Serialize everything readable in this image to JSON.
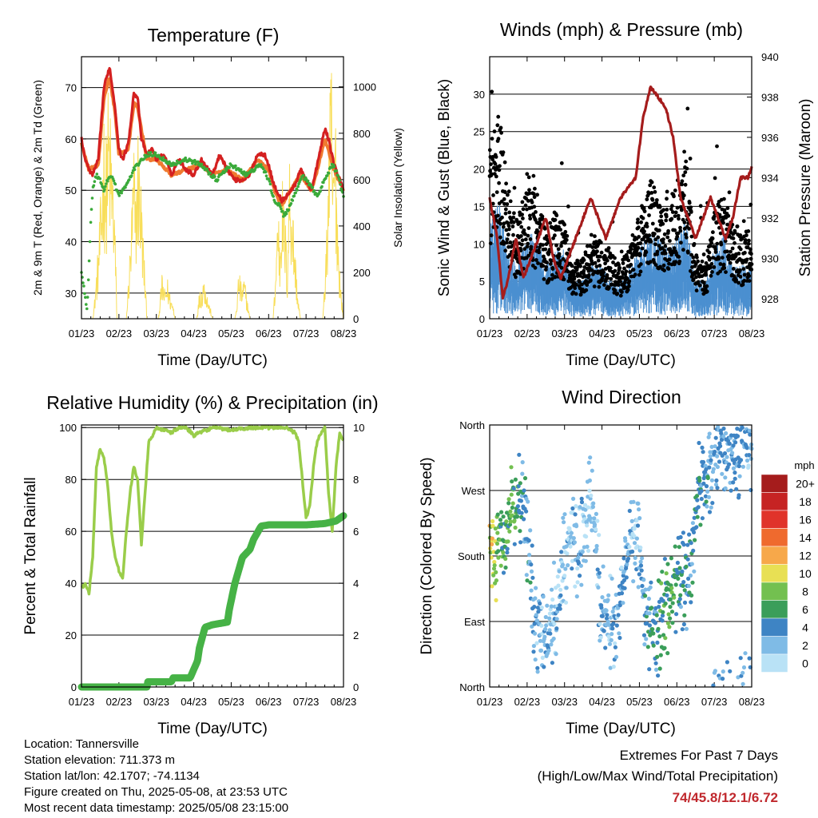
{
  "colors": {
    "temp_2m": "#d42020",
    "temp_9m": "#f07a30",
    "dewpoint": "#3aaa3a",
    "solar": "#f8de5a",
    "gust": "#000000",
    "wind": "#4b8fd0",
    "pressure": "#a51c1c",
    "rh": "#9acd4a",
    "precip": "#46b246",
    "extremes_text": "#c0282d"
  },
  "chart_data": [
    {
      "id": "temperature",
      "type": "line",
      "title": "Temperature (F)",
      "xlabel": "Time (Day/UTC)",
      "ylabel": "2m & 9m T (Red, Orange) & 2m Td (Green)",
      "y2label": "Solar Insolation (Yellow)",
      "x_ticks": [
        "01/23",
        "02/23",
        "03/23",
        "04/23",
        "05/23",
        "06/23",
        "07/23",
        "08/23"
      ],
      "y_ticks": [
        30,
        40,
        50,
        60,
        70
      ],
      "y2_ticks": [
        0,
        200,
        400,
        600,
        800,
        1000
      ],
      "ylim": [
        25,
        76
      ],
      "y2lim": [
        0,
        1130
      ],
      "grid": true,
      "series": [
        {
          "key": "t2m",
          "x": [
            0,
            0.1,
            0.2,
            0.3,
            0.45,
            0.6,
            0.75,
            0.9,
            1.0,
            1.1,
            1.25,
            1.4,
            1.5,
            1.6,
            1.75,
            1.9,
            2.0,
            2.2,
            2.4,
            2.6,
            2.8,
            3.0,
            3.2,
            3.3,
            3.5,
            3.7,
            3.9,
            4.1,
            4.3,
            4.5,
            4.7,
            4.9,
            5.0,
            5.1,
            5.2,
            5.35,
            5.5,
            5.7,
            5.85,
            6.0,
            6.15,
            6.3,
            6.5,
            6.6,
            6.75,
            6.9,
            7.0
          ],
          "y": [
            60,
            56,
            54,
            53,
            56,
            70,
            74,
            66,
            58,
            56,
            59,
            69,
            68,
            60,
            57,
            58,
            56,
            57,
            53,
            56,
            54,
            53,
            56,
            55,
            53,
            57,
            54,
            52,
            52,
            53,
            57,
            57,
            55,
            52,
            50,
            48,
            49,
            51,
            54,
            52,
            50,
            55,
            62,
            60,
            55,
            52,
            50
          ]
        },
        {
          "key": "t9m",
          "x": [
            0,
            0.2,
            0.45,
            0.6,
            0.75,
            0.9,
            1.0,
            1.25,
            1.4,
            1.5,
            1.75,
            2.0,
            2.4,
            2.8,
            3.2,
            3.5,
            3.9,
            4.3,
            4.7,
            5.0,
            5.2,
            5.35,
            5.5,
            5.85,
            6.15,
            6.3,
            6.5,
            6.75,
            7.0
          ],
          "y": [
            59,
            54,
            55,
            68,
            72,
            65,
            57,
            58,
            67,
            66,
            56,
            56,
            53,
            54,
            55,
            53,
            54,
            52,
            56,
            54,
            49,
            47,
            49,
            53,
            50,
            54,
            60,
            54,
            50
          ]
        },
        {
          "key": "td2m",
          "x": [
            0,
            0.05,
            0.1,
            0.15,
            0.2,
            0.25,
            0.3,
            0.35,
            0.4,
            0.5,
            0.6,
            0.7,
            0.8,
            0.9,
            1.0,
            1.2,
            1.4,
            1.6,
            1.8,
            2.0,
            2.4,
            2.8,
            3.2,
            3.6,
            4.0,
            4.4,
            4.8,
            5.0,
            5.15,
            5.3,
            5.4,
            5.5,
            5.7,
            5.9,
            6.1,
            6.3,
            6.5,
            6.7,
            6.85,
            7.0
          ],
          "y": [
            34,
            32,
            29,
            27,
            35,
            44,
            50,
            52,
            53,
            52,
            50,
            52,
            53,
            51,
            49,
            51,
            54,
            56,
            57,
            57,
            55,
            56,
            55,
            52,
            55,
            53,
            55,
            52,
            48,
            47,
            45,
            46,
            49,
            53,
            51,
            49,
            52,
            55,
            53,
            49
          ]
        },
        {
          "key": "solar",
          "x": [
            0,
            0.3,
            0.35,
            0.45,
            0.55,
            0.6,
            0.65,
            0.72,
            0.8,
            0.88,
            0.95,
            1.2,
            1.3,
            1.4,
            1.45,
            1.5,
            1.58,
            1.65,
            1.75,
            1.9,
            2.05,
            2.1,
            2.15,
            2.22,
            2.3,
            2.38,
            2.45,
            2.5,
            2.55,
            2.62,
            2.7,
            3.08,
            3.12,
            3.17,
            3.2,
            3.25,
            3.32,
            3.38,
            3.45,
            3.5,
            4.1,
            4.15,
            4.2,
            4.28,
            4.35,
            4.42,
            4.5,
            5.12,
            5.18,
            5.25,
            5.3,
            5.35,
            5.45,
            5.5,
            5.55,
            5.62,
            5.7,
            5.78,
            5.85,
            6.45,
            6.55,
            6.62,
            6.68,
            6.72,
            6.78,
            6.85,
            6.92,
            7.0
          ],
          "y": [
            0,
            0,
            80,
            300,
            600,
            850,
            700,
            950,
            750,
            500,
            0,
            0,
            300,
            700,
            500,
            800,
            600,
            350,
            0,
            0,
            0,
            80,
            180,
            120,
            160,
            90,
            60,
            0,
            0,
            0,
            0,
            0,
            60,
            150,
            100,
            180,
            140,
            80,
            40,
            0,
            0,
            60,
            200,
            130,
            170,
            90,
            0,
            0,
            180,
            520,
            300,
            600,
            400,
            200,
            700,
            550,
            300,
            100,
            0,
            0,
            350,
            850,
            1050,
            600,
            900,
            400,
            150,
            0
          ]
        }
      ]
    },
    {
      "id": "winds",
      "type": "scatter",
      "title": "Winds (mph) & Pressure (mb)",
      "xlabel": "Time (Day/UTC)",
      "ylabel": "Sonic Wind & Gust (Blue, Black)",
      "y2label": "Station Pressure (Maroon)",
      "x_ticks": [
        "01/23",
        "02/23",
        "03/23",
        "04/23",
        "05/23",
        "06/23",
        "07/23",
        "08/23"
      ],
      "y_ticks": [
        0,
        5,
        10,
        15,
        20,
        25,
        30
      ],
      "y2_ticks": [
        928,
        930,
        932,
        934,
        936,
        938,
        940
      ],
      "ylim": [
        0,
        35
      ],
      "y2lim": [
        927,
        940
      ],
      "grid": true,
      "series": [
        {
          "key": "gust_center",
          "x": [
            0,
            0.25,
            0.5,
            0.75,
            1.0,
            1.25,
            1.5,
            1.75,
            2.0,
            2.25,
            2.5,
            2.75,
            3.0,
            3.25,
            3.5,
            3.75,
            4.0,
            4.25,
            4.5,
            4.75,
            5.0,
            5.25,
            5.5,
            5.75,
            6.0,
            6.25,
            6.5,
            6.75,
            7.0
          ],
          "y": [
            16,
            20,
            12,
            9,
            14,
            12,
            8,
            10,
            9,
            5,
            6,
            8,
            7,
            6,
            5,
            7,
            10,
            13,
            12,
            11,
            12,
            15,
            6,
            5,
            10,
            12,
            9,
            8,
            9
          ]
        },
        {
          "key": "wind_center",
          "x": [
            0,
            0.25,
            0.5,
            0.75,
            1.0,
            1.25,
            1.5,
            1.75,
            2.0,
            2.25,
            2.5,
            2.75,
            3.0,
            3.25,
            3.5,
            3.75,
            4.0,
            4.25,
            4.5,
            4.75,
            5.0,
            5.25,
            5.5,
            5.75,
            6.0,
            6.25,
            6.5,
            6.75,
            7.0
          ],
          "y": [
            6,
            7,
            4,
            3,
            5,
            5,
            3,
            4,
            4,
            2,
            2,
            3,
            3,
            2,
            2,
            3,
            4,
            5,
            5,
            4,
            5,
            6,
            2,
            2,
            4,
            5,
            3,
            3,
            3
          ]
        },
        {
          "key": "pressure",
          "x": [
            0,
            0.2,
            0.35,
            0.5,
            0.7,
            0.9,
            1.1,
            1.3,
            1.5,
            1.7,
            1.9,
            2.1,
            2.3,
            2.5,
            2.7,
            2.9,
            3.1,
            3.3,
            3.5,
            3.7,
            3.9,
            4.1,
            4.3,
            4.5,
            4.7,
            4.9,
            5.1,
            5.3,
            5.5,
            5.7,
            5.9,
            6.1,
            6.3,
            6.5,
            6.7,
            6.9,
            7.0
          ],
          "y": [
            933,
            931,
            928,
            929,
            931,
            929,
            930,
            931,
            932,
            930,
            929,
            930,
            931,
            932,
            933,
            932,
            931,
            932,
            933,
            933.5,
            934,
            937,
            938.5,
            938,
            937.5,
            936,
            933,
            932,
            931,
            932,
            933,
            932,
            931,
            932,
            934,
            934,
            934.5
          ]
        }
      ]
    },
    {
      "id": "humidity",
      "type": "line",
      "title": "Relative Humidity (%) & Precipitation (in)",
      "xlabel": "Time (Day/UTC)",
      "ylabel": "Percent & Total Rainfall",
      "x_ticks": [
        "01/23",
        "02/23",
        "03/23",
        "04/23",
        "05/23",
        "06/23",
        "07/23",
        "08/23"
      ],
      "y_ticks": [
        0,
        20,
        40,
        60,
        80,
        100
      ],
      "y2_ticks": [
        0,
        2,
        4,
        6,
        8,
        10
      ],
      "ylim": [
        0,
        101
      ],
      "y2lim": [
        0,
        10.1
      ],
      "grid": true,
      "series": [
        {
          "key": "rh",
          "x": [
            0,
            0.1,
            0.2,
            0.3,
            0.4,
            0.5,
            0.6,
            0.7,
            0.8,
            0.9,
            1.0,
            1.1,
            1.2,
            1.3,
            1.4,
            1.5,
            1.6,
            1.7,
            1.8,
            1.9,
            2.0,
            2.2,
            2.4,
            2.6,
            2.8,
            3.0,
            3.5,
            4.0,
            4.5,
            5.0,
            5.5,
            5.7,
            5.8,
            5.9,
            6.0,
            6.1,
            6.2,
            6.3,
            6.4,
            6.5,
            6.6,
            6.7,
            6.8,
            6.9,
            7.0
          ],
          "y": [
            38,
            40,
            36,
            50,
            85,
            92,
            88,
            78,
            60,
            50,
            45,
            42,
            60,
            75,
            85,
            80,
            55,
            75,
            95,
            97,
            100,
            99,
            98,
            100,
            100,
            97,
            100,
            99,
            100,
            100,
            100,
            98,
            95,
            80,
            65,
            70,
            85,
            95,
            98,
            100,
            75,
            60,
            85,
            98,
            95
          ]
        },
        {
          "key": "precip",
          "x": [
            0,
            1.75,
            1.76,
            2.4,
            2.45,
            2.9,
            3.1,
            3.15,
            3.3,
            3.5,
            3.9,
            3.95,
            4.1,
            4.3,
            4.5,
            4.6,
            4.8,
            5.0,
            5.3,
            5.5,
            5.7,
            6.0,
            6.5,
            6.8,
            7.0
          ],
          "y": [
            0,
            0,
            0.2,
            0.2,
            0.35,
            0.35,
            1.0,
            1.5,
            2.3,
            2.4,
            2.5,
            3.0,
            4.0,
            5.0,
            5.3,
            5.7,
            6.2,
            6.25,
            6.25,
            6.25,
            6.25,
            6.25,
            6.3,
            6.4,
            6.6
          ]
        }
      ]
    },
    {
      "id": "direction",
      "type": "scatter",
      "title": "Wind Direction",
      "xlabel": "Time (Day/UTC)",
      "ylabel": "Direction (Colored By Speed)",
      "x_ticks": [
        "01/23",
        "02/23",
        "03/23",
        "04/23",
        "05/23",
        "06/23",
        "07/23",
        "08/23"
      ],
      "y_ticks": [
        "North",
        "East",
        "South",
        "West",
        "North"
      ],
      "ylim": [
        0,
        360
      ],
      "grid": true,
      "legend": {
        "title": "mph",
        "labels": [
          "20+",
          "18",
          "16",
          "14",
          "12",
          "10",
          "8",
          "6",
          "4",
          "2",
          "0"
        ],
        "colors": [
          "#a51c1c",
          "#c62323",
          "#e0332a",
          "#ef6a2e",
          "#f7a84a",
          "#e8e054",
          "#73c050",
          "#3b9e5a",
          "#3e84c4",
          "#7fbbe6",
          "#b9e2f6"
        ],
        "placement": "right"
      },
      "series": [
        {
          "key": "dir_center",
          "x": [
            0.1,
            0.3,
            0.6,
            0.9,
            1.2,
            1.5,
            1.8,
            2.1,
            2.4,
            2.7,
            3.0,
            3.3,
            3.6,
            3.9,
            4.2,
            4.5,
            4.7,
            5.0,
            5.3,
            5.6,
            5.9,
            6.2,
            6.5,
            6.8,
            7.0
          ],
          "y": [
            180,
            200,
            250,
            260,
            100,
            60,
            120,
            200,
            180,
            260,
            100,
            80,
            160,
            220,
            90,
            80,
            110,
            140,
            150,
            280,
            300,
            330,
            320,
            340,
            330
          ],
          "spd": [
            10,
            6,
            7,
            4,
            3,
            2,
            2,
            1,
            2,
            1,
            3,
            2,
            3,
            1,
            4,
            5,
            6,
            5,
            4,
            5,
            3,
            3,
            3,
            3,
            2
          ]
        }
      ]
    }
  ],
  "info": {
    "location": "Location: Tannersville",
    "elevation": "Station elevation: 711.373 m",
    "latlon": "Station lat/lon: 42.1707; -74.1134",
    "created": "Figure created on Thu, 2025-05-08, at 23:53 UTC",
    "recent": "Most recent data timestamp: 2025/05/08 23:15:00"
  },
  "extremes": {
    "title": "Extremes For Past 7 Days",
    "subtitle": "(High/Low/Max Wind/Total Precipitation)",
    "values": "74/45.8/12.1/6.72"
  }
}
